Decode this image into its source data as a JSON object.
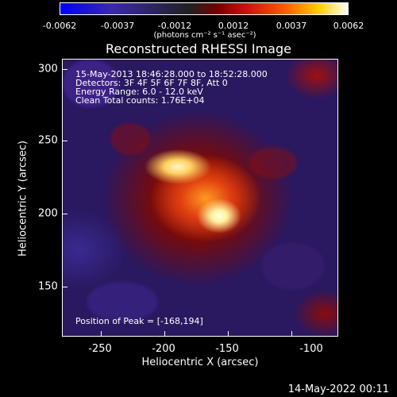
{
  "colorbar": {
    "ticks": [
      "-0.0062",
      "-0.0037",
      "-0.0012",
      "0.0012",
      "0.0037",
      "0.0062"
    ],
    "unit": "(photons cm⁻² s⁻¹ asec⁻²)"
  },
  "title": "Reconstructed RHESSI Image",
  "info": {
    "line1": "15-May-2013 18:46:28.000 to 18:52:28.000",
    "line2": "Detectors: 3F 4F 5F 6F 7F 8F, Att 0",
    "line3": "Energy Range: 6.0 - 12.0 keV",
    "line4": "Clean     Total counts: 1.76E+04"
  },
  "peak": "Position of Peak = [-168,194]",
  "x_axis": {
    "title": "Heliocentric X (arcsec)",
    "ticks": [
      "-250",
      "-200",
      "-150",
      "-100"
    ]
  },
  "y_axis": {
    "title": "Heliocentric Y (arcsec)",
    "ticks": [
      "300",
      "250",
      "200",
      "150"
    ]
  },
  "timestamp": "14-May-2022 00:11"
}
